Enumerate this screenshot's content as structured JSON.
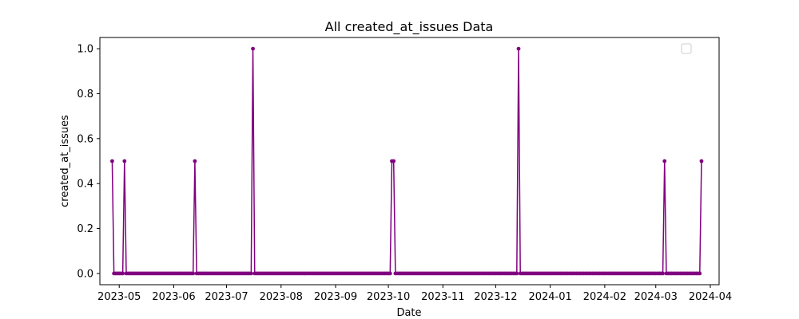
{
  "chart_data": {
    "type": "line",
    "title": "All created_at_issues Data",
    "xlabel": "Date",
    "ylabel": "created_at_issues",
    "x_tick_labels": [
      "2023-05",
      "2023-06",
      "2023-07",
      "2023-08",
      "2023-09",
      "2023-10",
      "2023-11",
      "2023-12",
      "2024-01",
      "2024-02",
      "2024-03",
      "2024-04"
    ],
    "y_tick_labels": [
      "0.0",
      "0.2",
      "0.4",
      "0.6",
      "0.8",
      "1.0"
    ],
    "xlim": [
      "2023-04-20",
      "2024-04-06"
    ],
    "ylim": [
      -0.05,
      1.05
    ],
    "grid": false,
    "legend": {
      "location": "top-right",
      "entries": []
    },
    "line_color": "#800080",
    "series": [
      {
        "start_date": "2023-04-27",
        "end_date": "2024-03-27",
        "frequency": "daily",
        "default_value": 0,
        "points": [
          {
            "x": "2023-04-27",
            "y": 0.5
          },
          {
            "x": "2023-05-04",
            "y": 0.5
          },
          {
            "x": "2023-06-13",
            "y": 0.5
          },
          {
            "x": "2023-07-16",
            "y": 1.0
          },
          {
            "x": "2023-10-03",
            "y": 0.5
          },
          {
            "x": "2023-10-04",
            "y": 0.5
          },
          {
            "x": "2023-12-14",
            "y": 1.0
          },
          {
            "x": "2024-03-06",
            "y": 0.5
          },
          {
            "x": "2024-03-27",
            "y": 0.5
          }
        ]
      }
    ]
  }
}
